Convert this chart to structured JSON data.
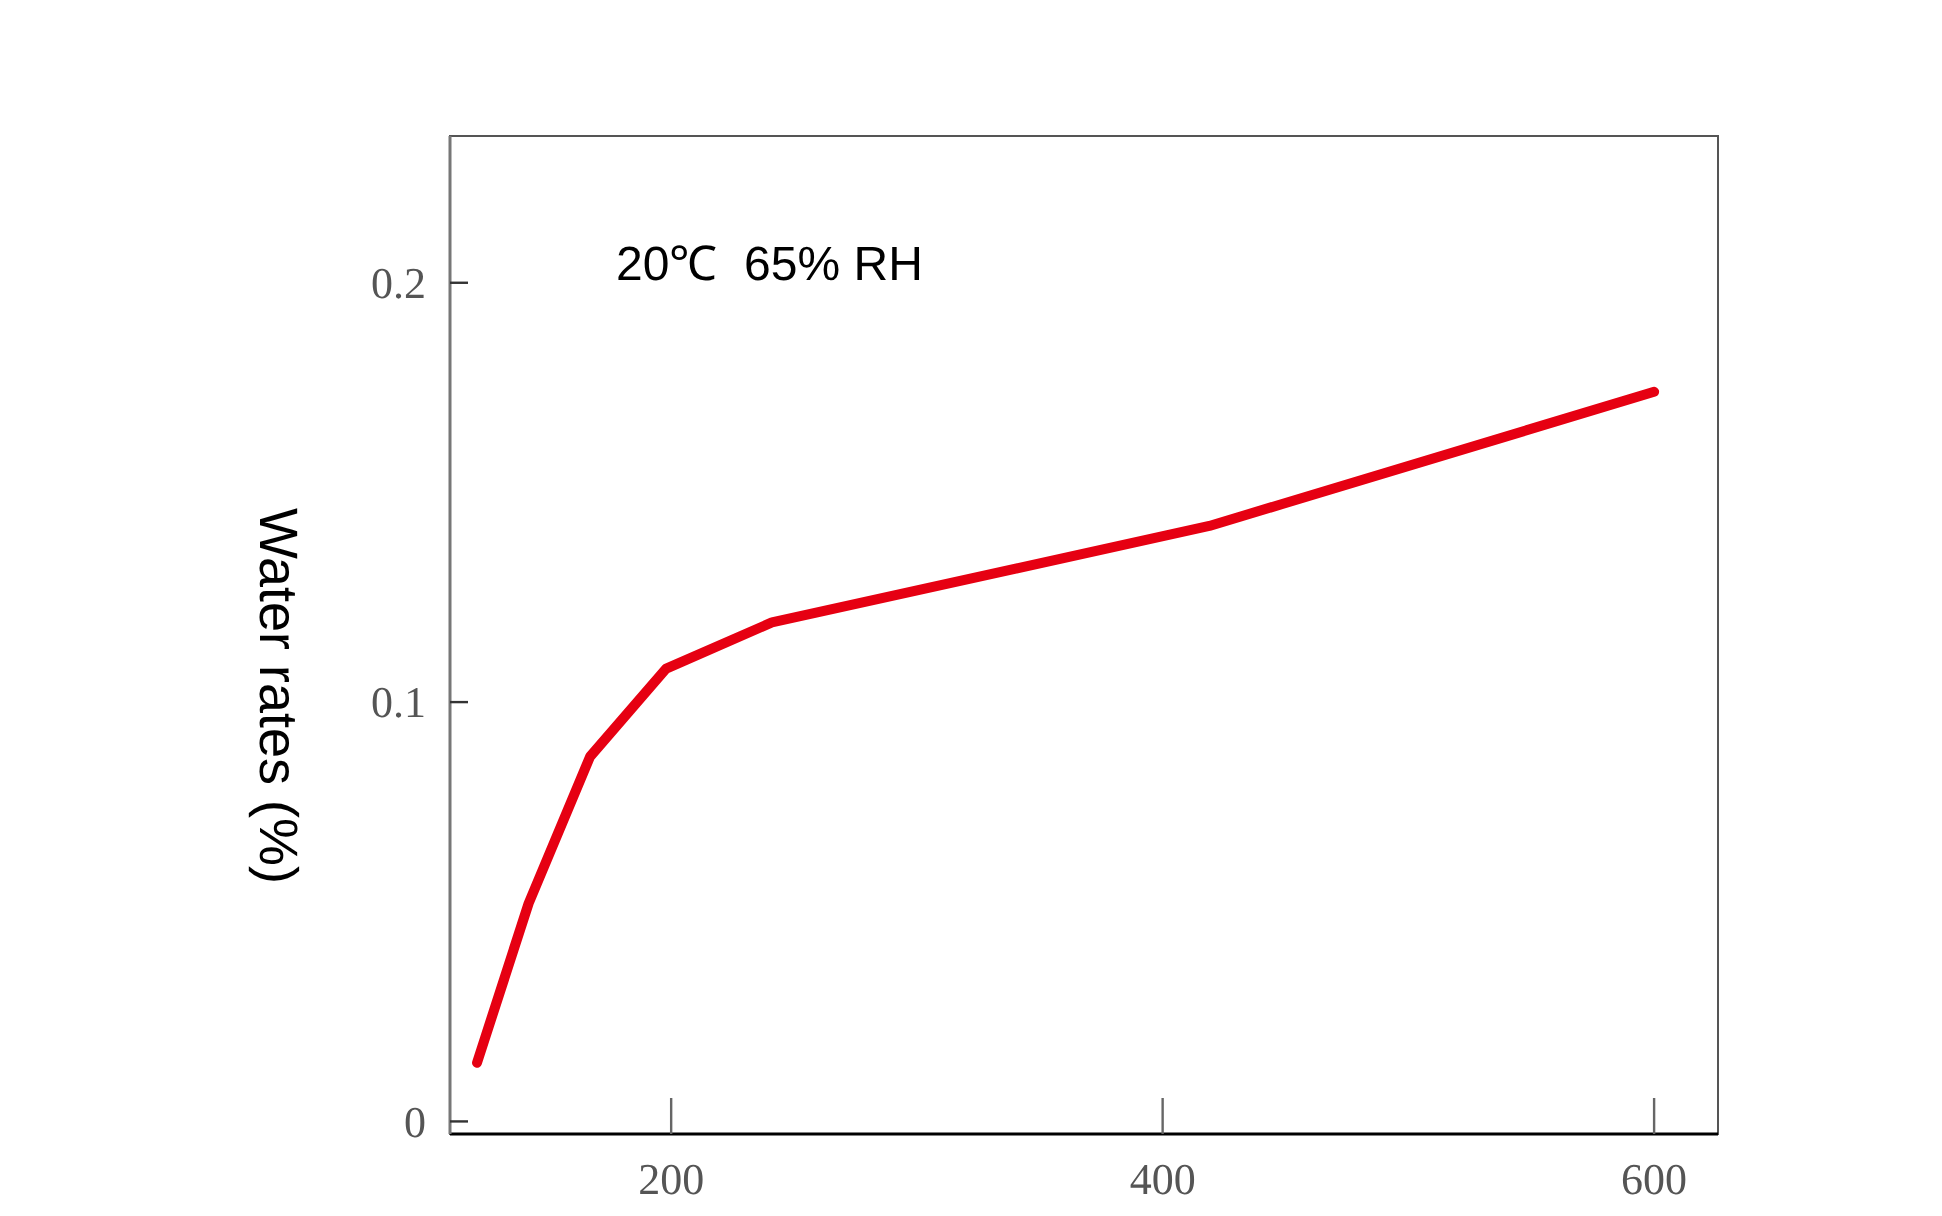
{
  "chart_data": {
    "type": "line",
    "ylabel": "Water rates (%)",
    "annotations": [
      "20℃  65% RH"
    ],
    "x": [
      121,
      142,
      167,
      198,
      241,
      419,
      600
    ],
    "series": [
      {
        "color": "#e60012",
        "values": [
          0.014,
          0.052,
          0.087,
          0.108,
          0.119,
          0.142,
          0.174
        ]
      }
    ],
    "xlim": [
      110,
      626
    ],
    "xticks": [
      200,
      400,
      600
    ],
    "ylim": [
      -0.003,
      0.235
    ],
    "yticks": [
      0,
      0.1,
      0.2
    ],
    "grid": false,
    "marker": "none",
    "line_style": "solid"
  }
}
